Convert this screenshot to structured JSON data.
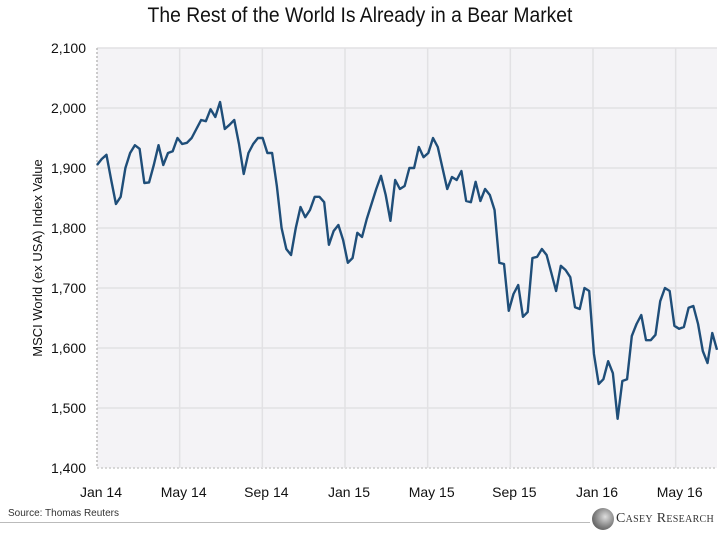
{
  "chart_data": {
    "type": "line",
    "title": "The Rest of the World Is Already in a Bear Market",
    "xlabel": "",
    "ylabel": "MSCI World (ex USA) Index Value",
    "ylim": [
      1400,
      2100
    ],
    "yticks": [
      1400,
      1500,
      1600,
      1700,
      1800,
      1900,
      2000,
      2100
    ],
    "ytick_labels": [
      "1,400",
      "1,500",
      "1,600",
      "1,700",
      "1,800",
      "1,900",
      "2,000",
      "2,100"
    ],
    "x_unit": "months since Jan 2014",
    "xlim": [
      0,
      30
    ],
    "xticks": [
      0,
      4,
      8,
      12,
      16,
      20,
      24,
      28
    ],
    "xtick_labels": [
      "Jan 14",
      "May 14",
      "Sep 14",
      "Jan 15",
      "May 15",
      "Sep 15",
      "Jan 16",
      "May 16"
    ],
    "grid": true,
    "line_color": "#1f4e79",
    "series": [
      {
        "name": "MSCI World (ex USA)",
        "frequency": "weekly",
        "values": [
          1905,
          1915,
          1922,
          1880,
          1840,
          1852,
          1900,
          1925,
          1938,
          1932,
          1875,
          1876,
          1905,
          1938,
          1905,
          1925,
          1928,
          1950,
          1940,
          1942,
          1950,
          1965,
          1980,
          1978,
          1998,
          1985,
          2010,
          1965,
          1972,
          1980,
          1940,
          1890,
          1925,
          1940,
          1950,
          1950,
          1925,
          1925,
          1870,
          1800,
          1765,
          1755,
          1800,
          1835,
          1818,
          1830,
          1852,
          1852,
          1843,
          1772,
          1795,
          1805,
          1780,
          1742,
          1750,
          1792,
          1785,
          1815,
          1840,
          1865,
          1887,
          1855,
          1812,
          1880,
          1865,
          1870,
          1900,
          1900,
          1935,
          1918,
          1925,
          1950,
          1935,
          1900,
          1865,
          1885,
          1880,
          1895,
          1845,
          1843,
          1877,
          1845,
          1865,
          1855,
          1830,
          1742,
          1740,
          1662,
          1690,
          1705,
          1652,
          1660,
          1750,
          1752,
          1765,
          1755,
          1725,
          1695,
          1737,
          1730,
          1718,
          1668,
          1665,
          1700,
          1695,
          1590,
          1540,
          1548,
          1578,
          1558,
          1482,
          1545,
          1548,
          1620,
          1640,
          1655,
          1613,
          1613,
          1622,
          1678,
          1700,
          1695,
          1637,
          1632,
          1635,
          1667,
          1670,
          1640,
          1595,
          1575,
          1625,
          1597
        ]
      }
    ]
  },
  "footer": {
    "source": "Source: Thomas Reuters",
    "logo": "CASEY RESEARCH"
  }
}
